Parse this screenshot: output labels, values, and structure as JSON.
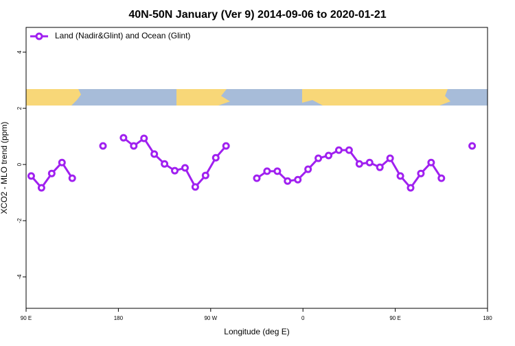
{
  "chart_data": {
    "type": "line",
    "title": "40N-50N January (Ver 9)   2014-09-06 to 2020-01-21",
    "x_label": "Longitude (deg E)",
    "y_label": "XCO2 - MLO trend (ppm)",
    "x": [
      95,
      105,
      115,
      125,
      135,
      145,
      165,
      175,
      185,
      195,
      205,
      215,
      225,
      235,
      245,
      255,
      265,
      275,
      285,
      295,
      315,
      325,
      335,
      345,
      355,
      365,
      375,
      385,
      395,
      405,
      415,
      425,
      435,
      445,
      455,
      465,
      475,
      485,
      495,
      505,
      525
    ],
    "series": [
      {
        "name": "Land (Nadir&Glint) and Ocean (Glint)",
        "color": "#a020f0",
        "values": [
          -0.41,
          -0.83,
          -0.32,
          0.07,
          -0.49,
          null,
          0.66,
          null,
          0.95,
          0.66,
          0.93,
          0.37,
          0.02,
          -0.22,
          -0.12,
          -0.8,
          -0.39,
          0.24,
          0.66,
          null,
          -0.49,
          -0.24,
          -0.24,
          -0.59,
          -0.54,
          -0.17,
          0.22,
          0.32,
          0.51,
          0.51,
          0.02,
          0.07,
          -0.1,
          0.22,
          -0.41,
          -0.83,
          -0.32,
          0.07,
          -0.49,
          null,
          0.66
        ]
      }
    ],
    "xlim": [
      90,
      540
    ],
    "xticks": [
      {
        "value": 90,
        "label": "90 E"
      },
      {
        "value": 180,
        "label": "180"
      },
      {
        "value": 270,
        "label": "90 W"
      },
      {
        "value": 360,
        "label": "0"
      },
      {
        "value": 450,
        "label": "90 E"
      },
      {
        "value": 540,
        "label": "180"
      }
    ],
    "ylim": [
      -5.12,
      4.88
    ],
    "yticks": [
      -4,
      -2,
      0,
      2,
      4
    ],
    "legend": "top-left",
    "grid": false
  }
}
